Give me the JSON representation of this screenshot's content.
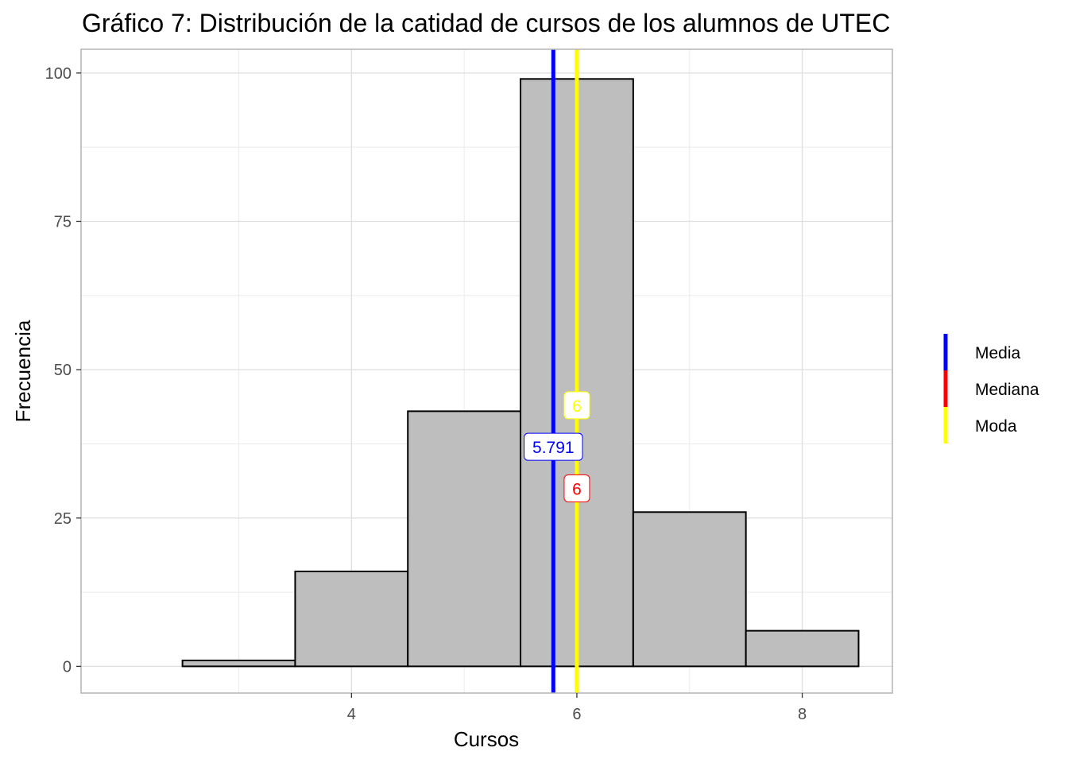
{
  "chart_data": {
    "type": "bar",
    "title": "Gráfico 7: Distribución de la catidad de cursos de los alumnos de UTEC",
    "xlabel": "Cursos",
    "ylabel": "Frecuencia",
    "bins": [
      {
        "x_start": 2.5,
        "x_end": 3.5,
        "count": 1
      },
      {
        "x_start": 3.5,
        "x_end": 4.5,
        "count": 16
      },
      {
        "x_start": 4.5,
        "x_end": 5.5,
        "count": 43
      },
      {
        "x_start": 5.5,
        "x_end": 6.5,
        "count": 99
      },
      {
        "x_start": 6.5,
        "x_end": 7.5,
        "count": 26
      },
      {
        "x_start": 7.5,
        "x_end": 8.5,
        "count": 6
      }
    ],
    "xlim": [
      1.6,
      8.8
    ],
    "ylim": [
      -4.5,
      104
    ],
    "x_ticks": [
      4,
      6,
      8
    ],
    "y_ticks": [
      0,
      25,
      50,
      75,
      100
    ],
    "grid": true,
    "bar_fill": "#bebebe",
    "bar_outline": "#000000",
    "reference_lines": [
      {
        "name": "Media",
        "x": 5.791,
        "label": "5.791",
        "color": "#0000ff",
        "label_y": 37
      },
      {
        "name": "Mediana",
        "x": 6,
        "label": "6",
        "color": "#ff0000",
        "label_y": 30
      },
      {
        "name": "Moda",
        "x": 6,
        "label": "6",
        "color": "#ffff00",
        "label_y": 44
      }
    ],
    "legend": {
      "placement": "right",
      "entries": [
        {
          "label": "Media",
          "color": "#0000ff"
        },
        {
          "label": "Mediana",
          "color": "#ff0000"
        },
        {
          "label": "Moda",
          "color": "#ffff00"
        }
      ]
    }
  }
}
